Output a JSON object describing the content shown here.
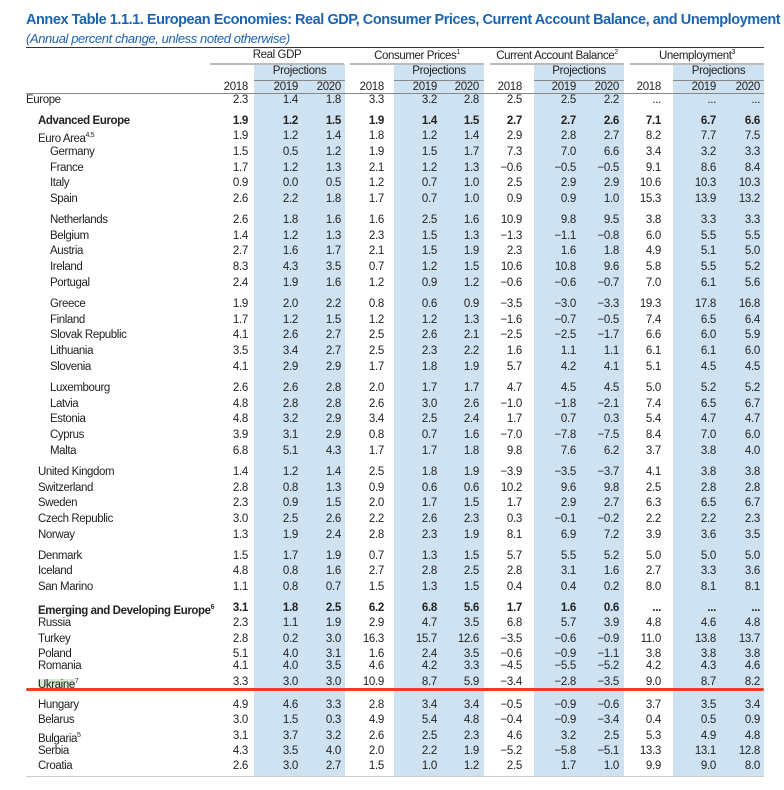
{
  "title": "Annex Table 1.1.1. European Economies: Real GDP, Consumer Prices, Current Account Balance, and Unemployment",
  "subtitle": "(Annual percent change, unless noted otherwise)",
  "groups": [
    {
      "label": "Real GDP",
      "sup": ""
    },
    {
      "label": "Consumer Prices",
      "sup": "1"
    },
    {
      "label": "Current Account Balance",
      "sup": "2"
    },
    {
      "label": "Unemployment",
      "sup": "3"
    }
  ],
  "projections_label": "Projections",
  "years": [
    "2018",
    "2019",
    "2020"
  ],
  "rows": [
    {
      "name": "Europe",
      "sup": "",
      "bold": false,
      "indent": 0,
      "v": [
        "2.3",
        "1.4",
        "1.8",
        "3.3",
        "3.2",
        "2.8",
        "2.5",
        "2.5",
        "2.2",
        "...",
        "...",
        "..."
      ]
    },
    {
      "name": "Advanced Europe",
      "sup": "",
      "bold": true,
      "indent": 1,
      "v": [
        "1.9",
        "1.2",
        "1.5",
        "1.9",
        "1.4",
        "1.5",
        "2.7",
        "2.7",
        "2.6",
        "7.1",
        "6.7",
        "6.6"
      ]
    },
    {
      "name": "Euro Area",
      "sup": "4,5",
      "bold": false,
      "indent": 1,
      "v": [
        "1.9",
        "1.2",
        "1.4",
        "1.8",
        "1.2",
        "1.4",
        "2.9",
        "2.8",
        "2.7",
        "8.2",
        "7.7",
        "7.5"
      ]
    },
    {
      "name": "Germany",
      "sup": "",
      "bold": false,
      "indent": 2,
      "v": [
        "1.5",
        "0.5",
        "1.2",
        "1.9",
        "1.5",
        "1.7",
        "7.3",
        "7.0",
        "6.6",
        "3.4",
        "3.2",
        "3.3"
      ]
    },
    {
      "name": "France",
      "sup": "",
      "bold": false,
      "indent": 2,
      "v": [
        "1.7",
        "1.2",
        "1.3",
        "2.1",
        "1.2",
        "1.3",
        "−0.6",
        "−0.5",
        "−0.5",
        "9.1",
        "8.6",
        "8.4"
      ]
    },
    {
      "name": "Italy",
      "sup": "",
      "bold": false,
      "indent": 2,
      "v": [
        "0.9",
        "0.0",
        "0.5",
        "1.2",
        "0.7",
        "1.0",
        "2.5",
        "2.9",
        "2.9",
        "10.6",
        "10.3",
        "10.3"
      ]
    },
    {
      "name": "Spain",
      "sup": "",
      "bold": false,
      "indent": 2,
      "v": [
        "2.6",
        "2.2",
        "1.8",
        "1.7",
        "0.7",
        "1.0",
        "0.9",
        "0.9",
        "1.0",
        "15.3",
        "13.9",
        "13.2"
      ]
    },
    {
      "name": "Netherlands",
      "sup": "",
      "bold": false,
      "indent": 2,
      "v": [
        "2.6",
        "1.8",
        "1.6",
        "1.6",
        "2.5",
        "1.6",
        "10.9",
        "9.8",
        "9.5",
        "3.8",
        "3.3",
        "3.3"
      ]
    },
    {
      "name": "Belgium",
      "sup": "",
      "bold": false,
      "indent": 2,
      "v": [
        "1.4",
        "1.2",
        "1.3",
        "2.3",
        "1.5",
        "1.3",
        "−1.3",
        "−1.1",
        "−0.8",
        "6.0",
        "5.5",
        "5.5"
      ]
    },
    {
      "name": "Austria",
      "sup": "",
      "bold": false,
      "indent": 2,
      "v": [
        "2.7",
        "1.6",
        "1.7",
        "2.1",
        "1.5",
        "1.9",
        "2.3",
        "1.6",
        "1.8",
        "4.9",
        "5.1",
        "5.0"
      ]
    },
    {
      "name": "Ireland",
      "sup": "",
      "bold": false,
      "indent": 2,
      "v": [
        "8.3",
        "4.3",
        "3.5",
        "0.7",
        "1.2",
        "1.5",
        "10.6",
        "10.8",
        "9.6",
        "5.8",
        "5.5",
        "5.2"
      ]
    },
    {
      "name": "Portugal",
      "sup": "",
      "bold": false,
      "indent": 2,
      "v": [
        "2.4",
        "1.9",
        "1.6",
        "1.2",
        "0.9",
        "1.2",
        "−0.6",
        "−0.6",
        "−0.7",
        "7.0",
        "6.1",
        "5.6"
      ]
    },
    {
      "name": "Greece",
      "sup": "",
      "bold": false,
      "indent": 2,
      "v": [
        "1.9",
        "2.0",
        "2.2",
        "0.8",
        "0.6",
        "0.9",
        "−3.5",
        "−3.0",
        "−3.3",
        "19.3",
        "17.8",
        "16.8"
      ]
    },
    {
      "name": "Finland",
      "sup": "",
      "bold": false,
      "indent": 2,
      "v": [
        "1.7",
        "1.2",
        "1.5",
        "1.2",
        "1.2",
        "1.3",
        "−1.6",
        "−0.7",
        "−0.5",
        "7.4",
        "6.5",
        "6.4"
      ]
    },
    {
      "name": "Slovak Republic",
      "sup": "",
      "bold": false,
      "indent": 2,
      "v": [
        "4.1",
        "2.6",
        "2.7",
        "2.5",
        "2.6",
        "2.1",
        "−2.5",
        "−2.5",
        "−1.7",
        "6.6",
        "6.0",
        "5.9"
      ]
    },
    {
      "name": "Lithuania",
      "sup": "",
      "bold": false,
      "indent": 2,
      "v": [
        "3.5",
        "3.4",
        "2.7",
        "2.5",
        "2.3",
        "2.2",
        "1.6",
        "1.1",
        "1.1",
        "6.1",
        "6.1",
        "6.0"
      ]
    },
    {
      "name": "Slovenia",
      "sup": "",
      "bold": false,
      "indent": 2,
      "v": [
        "4.1",
        "2.9",
        "2.9",
        "1.7",
        "1.8",
        "1.9",
        "5.7",
        "4.2",
        "4.1",
        "5.1",
        "4.5",
        "4.5"
      ]
    },
    {
      "name": "Luxembourg",
      "sup": "",
      "bold": false,
      "indent": 2,
      "v": [
        "2.6",
        "2.6",
        "2.8",
        "2.0",
        "1.7",
        "1.7",
        "4.7",
        "4.5",
        "4.5",
        "5.0",
        "5.2",
        "5.2"
      ]
    },
    {
      "name": "Latvia",
      "sup": "",
      "bold": false,
      "indent": 2,
      "v": [
        "4.8",
        "2.8",
        "2.8",
        "2.6",
        "3.0",
        "2.6",
        "−1.0",
        "−1.8",
        "−2.1",
        "7.4",
        "6.5",
        "6.7"
      ]
    },
    {
      "name": "Estonia",
      "sup": "",
      "bold": false,
      "indent": 2,
      "v": [
        "4.8",
        "3.2",
        "2.9",
        "3.4",
        "2.5",
        "2.4",
        "1.7",
        "0.7",
        "0.3",
        "5.4",
        "4.7",
        "4.7"
      ]
    },
    {
      "name": "Cyprus",
      "sup": "",
      "bold": false,
      "indent": 2,
      "v": [
        "3.9",
        "3.1",
        "2.9",
        "0.8",
        "0.7",
        "1.6",
        "−7.0",
        "−7.8",
        "−7.5",
        "8.4",
        "7.0",
        "6.0"
      ]
    },
    {
      "name": "Malta",
      "sup": "",
      "bold": false,
      "indent": 2,
      "v": [
        "6.8",
        "5.1",
        "4.3",
        "1.7",
        "1.7",
        "1.8",
        "9.8",
        "7.6",
        "6.2",
        "3.7",
        "3.8",
        "4.0"
      ]
    },
    {
      "name": "United Kingdom",
      "sup": "",
      "bold": false,
      "indent": 1,
      "v": [
        "1.4",
        "1.2",
        "1.4",
        "2.5",
        "1.8",
        "1.9",
        "−3.9",
        "−3.5",
        "−3.7",
        "4.1",
        "3.8",
        "3.8"
      ]
    },
    {
      "name": "Switzerland",
      "sup": "",
      "bold": false,
      "indent": 1,
      "v": [
        "2.8",
        "0.8",
        "1.3",
        "0.9",
        "0.6",
        "0.6",
        "10.2",
        "9.6",
        "9.8",
        "2.5",
        "2.8",
        "2.8"
      ]
    },
    {
      "name": "Sweden",
      "sup": "",
      "bold": false,
      "indent": 1,
      "v": [
        "2.3",
        "0.9",
        "1.5",
        "2.0",
        "1.7",
        "1.5",
        "1.7",
        "2.9",
        "2.7",
        "6.3",
        "6.5",
        "6.7"
      ]
    },
    {
      "name": "Czech Republic",
      "sup": "",
      "bold": false,
      "indent": 1,
      "v": [
        "3.0",
        "2.5",
        "2.6",
        "2.2",
        "2.6",
        "2.3",
        "0.3",
        "−0.1",
        "−0.2",
        "2.2",
        "2.2",
        "2.3"
      ]
    },
    {
      "name": "Norway",
      "sup": "",
      "bold": false,
      "indent": 1,
      "v": [
        "1.3",
        "1.9",
        "2.4",
        "2.8",
        "2.3",
        "1.9",
        "8.1",
        "6.9",
        "7.2",
        "3.9",
        "3.6",
        "3.5"
      ]
    },
    {
      "name": "Denmark",
      "sup": "",
      "bold": false,
      "indent": 1,
      "v": [
        "1.5",
        "1.7",
        "1.9",
        "0.7",
        "1.3",
        "1.5",
        "5.7",
        "5.5",
        "5.2",
        "5.0",
        "5.0",
        "5.0"
      ]
    },
    {
      "name": "Iceland",
      "sup": "",
      "bold": false,
      "indent": 1,
      "v": [
        "4.8",
        "0.8",
        "1.6",
        "2.7",
        "2.8",
        "2.5",
        "2.8",
        "3.1",
        "1.6",
        "2.7",
        "3.3",
        "3.6"
      ]
    },
    {
      "name": "San Marino",
      "sup": "",
      "bold": false,
      "indent": 1,
      "v": [
        "1.1",
        "0.8",
        "0.7",
        "1.5",
        "1.3",
        "1.5",
        "0.4",
        "0.4",
        "0.2",
        "8.0",
        "8.1",
        "8.1"
      ]
    },
    {
      "name": "Emerging and Developing Europe",
      "sup": "6",
      "bold": true,
      "indent": 1,
      "v": [
        "3.1",
        "1.8",
        "2.5",
        "6.2",
        "6.8",
        "5.6",
        "1.7",
        "1.6",
        "0.6",
        "...",
        "...",
        "..."
      ]
    },
    {
      "name": "Russia",
      "sup": "",
      "bold": false,
      "indent": 1,
      "v": [
        "2.3",
        "1.1",
        "1.9",
        "2.9",
        "4.7",
        "3.5",
        "6.8",
        "5.7",
        "3.9",
        "4.8",
        "4.6",
        "4.8"
      ]
    },
    {
      "name": "Turkey",
      "sup": "",
      "bold": false,
      "indent": 1,
      "v": [
        "2.8",
        "0.2",
        "3.0",
        "16.3",
        "15.7",
        "12.6",
        "−3.5",
        "−0.6",
        "−0.9",
        "11.0",
        "13.8",
        "13.7"
      ]
    },
    {
      "name": "Poland",
      "sup": "",
      "bold": false,
      "indent": 1,
      "v": [
        "5.1",
        "4.0",
        "3.1",
        "1.6",
        "2.4",
        "3.5",
        "−0.6",
        "−0.9",
        "−1.1",
        "3.8",
        "3.8",
        "3.8"
      ]
    },
    {
      "name": "Romania",
      "sup": "",
      "bold": false,
      "indent": 1,
      "v": [
        "4.1",
        "4.0",
        "3.5",
        "4.6",
        "4.2",
        "3.3",
        "−4.5",
        "−5.5",
        "−5.2",
        "4.2",
        "4.3",
        "4.6"
      ]
    },
    {
      "name": "Ukraine",
      "sup": "7",
      "bold": false,
      "indent": 1,
      "highlight": true,
      "v": [
        "3.3",
        "3.0",
        "3.0",
        "10.9",
        "8.7",
        "5.9",
        "−3.4",
        "−2.8",
        "−3.5",
        "9.0",
        "8.7",
        "8.2"
      ]
    },
    {
      "name": "Hungary",
      "sup": "",
      "bold": false,
      "indent": 1,
      "v": [
        "4.9",
        "4.6",
        "3.3",
        "2.8",
        "3.4",
        "3.4",
        "−0.5",
        "−0.9",
        "−0.6",
        "3.7",
        "3.5",
        "3.4"
      ]
    },
    {
      "name": "Belarus",
      "sup": "",
      "bold": false,
      "indent": 1,
      "v": [
        "3.0",
        "1.5",
        "0.3",
        "4.9",
        "5.4",
        "4.8",
        "−0.4",
        "−0.9",
        "−3.4",
        "0.4",
        "0.5",
        "0.9"
      ]
    },
    {
      "name": "Bulgaria",
      "sup": "5",
      "bold": false,
      "indent": 1,
      "v": [
        "3.1",
        "3.7",
        "3.2",
        "2.6",
        "2.5",
        "2.3",
        "4.6",
        "3.2",
        "2.5",
        "5.3",
        "4.9",
        "4.8"
      ]
    },
    {
      "name": "Serbia",
      "sup": "",
      "bold": false,
      "indent": 1,
      "v": [
        "4.3",
        "3.5",
        "4.0",
        "2.0",
        "2.2",
        "1.9",
        "−5.2",
        "−5.8",
        "−5.1",
        "13.3",
        "13.1",
        "12.8"
      ]
    },
    {
      "name": "Croatia",
      "sup": "",
      "bold": false,
      "indent": 1,
      "v": [
        "2.6",
        "3.0",
        "2.7",
        "1.5",
        "1.0",
        "1.2",
        "2.5",
        "1.7",
        "1.0",
        "9.9",
        "9.0",
        "8.0"
      ]
    }
  ]
}
